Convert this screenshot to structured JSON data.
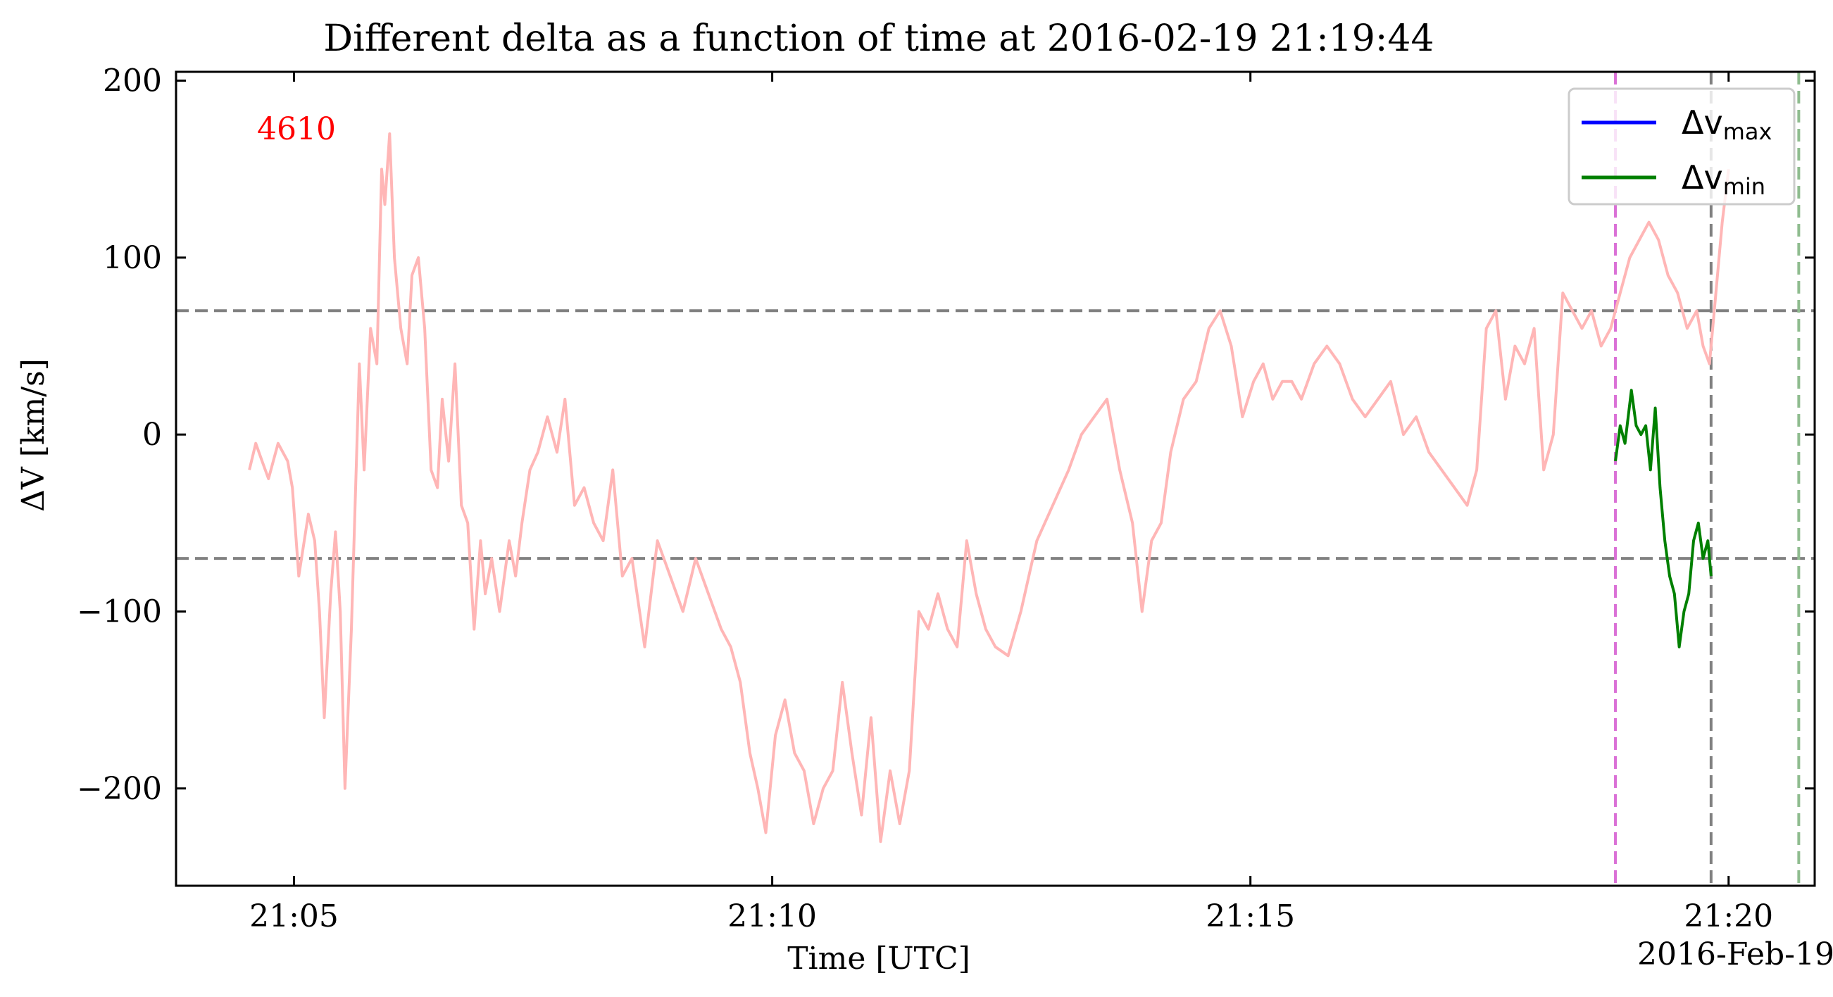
{
  "chart_data": {
    "type": "line",
    "title": "Different delta as a function of time at 2016-02-19 21:19:44",
    "xlabel": "Time [UTC]",
    "xlabel_date": "2016-Feb-19",
    "ylabel": "ΔV [km/s]",
    "xlim": [
      "21:03:46",
      "21:20:54"
    ],
    "ylim": [
      -255,
      205
    ],
    "x_ticks": [
      "21:05",
      "21:10",
      "21:15",
      "21:20"
    ],
    "y_ticks": [
      -200,
      -100,
      0,
      100,
      200
    ],
    "y_tick_labels": [
      "−200",
      "−100",
      "0",
      "100",
      "200"
    ],
    "annotation": {
      "text": "4610",
      "color": "#ff0000",
      "position": "top-left"
    },
    "legend": {
      "placement": "upper-right",
      "entries": [
        {
          "name": "Δv",
          "subscript": "max",
          "color": "#0000ff"
        },
        {
          "name": "Δv",
          "subscript": "min",
          "color": "#008000"
        }
      ]
    },
    "hlines": [
      {
        "y": 70,
        "color": "#808080",
        "style": "dashed"
      },
      {
        "y": -70,
        "color": "#808080",
        "style": "dashed"
      }
    ],
    "vlines": [
      {
        "x": "21:18:49",
        "color": "#da70d6",
        "style": "dashed"
      },
      {
        "x": "21:19:49",
        "color": "#808080",
        "style": "dashed"
      },
      {
        "x": "21:20:44",
        "color": "#8fbc8f",
        "style": "dashed"
      }
    ],
    "series": [
      {
        "color": "#ffb6b6",
        "x": [
          "21:04:32",
          "21:04:36",
          "21:04:40",
          "21:04:44",
          "21:04:50",
          "21:04:56",
          "21:04:59",
          "21:05:03",
          "21:05:09",
          "21:05:13",
          "21:05:16",
          "21:05:19",
          "21:05:23",
          "21:05:26",
          "21:05:29",
          "21:05:32",
          "21:05:36",
          "21:05:41",
          "21:05:44",
          "21:05:48",
          "21:05:52",
          "21:05:55",
          "21:05:57",
          "21:06:00",
          "21:06:03",
          "21:06:07",
          "21:06:11",
          "21:06:14",
          "21:06:18",
          "21:06:22",
          "21:06:26",
          "21:06:30",
          "21:06:33",
          "21:06:37",
          "21:06:41",
          "21:06:45",
          "21:06:49",
          "21:06:53",
          "21:06:57",
          "21:07:00",
          "21:07:04",
          "21:07:09",
          "21:07:15",
          "21:07:19",
          "21:07:23",
          "21:07:28",
          "21:07:33",
          "21:07:39",
          "21:07:45",
          "21:07:50",
          "21:07:56",
          "21:08:02",
          "21:08:08",
          "21:08:14",
          "21:08:20",
          "21:08:26",
          "21:08:32",
          "21:08:40",
          "21:08:48",
          "21:08:56",
          "21:09:04",
          "21:09:12",
          "21:09:20",
          "21:09:28",
          "21:09:34",
          "21:09:40",
          "21:09:46",
          "21:09:51",
          "21:09:56",
          "21:10:02",
          "21:10:08",
          "21:10:14",
          "21:10:20",
          "21:10:26",
          "21:10:32",
          "21:10:38",
          "21:10:44",
          "21:10:50",
          "21:10:56",
          "21:11:02",
          "21:11:08",
          "21:11:14",
          "21:11:20",
          "21:11:26",
          "21:11:32",
          "21:11:38",
          "21:11:44",
          "21:11:50",
          "21:11:56",
          "21:12:02",
          "21:12:08",
          "21:12:14",
          "21:12:20",
          "21:12:28",
          "21:12:36",
          "21:12:46",
          "21:12:56",
          "21:13:06",
          "21:13:14",
          "21:13:22",
          "21:13:30",
          "21:13:38",
          "21:13:46",
          "21:13:52",
          "21:13:58",
          "21:14:04",
          "21:14:10",
          "21:14:18",
          "21:14:26",
          "21:14:34",
          "21:14:41",
          "21:14:48",
          "21:14:55",
          "21:15:02",
          "21:15:08",
          "21:15:14",
          "21:15:20",
          "21:15:26",
          "21:15:32",
          "21:15:40",
          "21:15:48",
          "21:15:56",
          "21:16:04",
          "21:16:12",
          "21:16:20",
          "21:16:28",
          "21:16:36",
          "21:16:44",
          "21:16:52",
          "21:17:00",
          "21:17:08",
          "21:17:16",
          "21:17:22",
          "21:17:28",
          "21:17:34",
          "21:17:40",
          "21:17:46",
          "21:17:52",
          "21:17:58",
          "21:18:04",
          "21:18:10",
          "21:18:16",
          "21:18:22",
          "21:18:28",
          "21:18:34",
          "21:18:40",
          "21:18:46",
          "21:18:52",
          "21:18:58",
          "21:19:04",
          "21:19:10",
          "21:19:16",
          "21:19:22",
          "21:19:28",
          "21:19:34",
          "21:19:40",
          "21:19:44",
          "21:19:48",
          "21:19:52",
          "21:19:56",
          "21:20:00"
        ],
        "values": [
          -20,
          -5,
          -15,
          -25,
          -5,
          -15,
          -30,
          -80,
          -45,
          -60,
          -100,
          -160,
          -90,
          -55,
          -100,
          -200,
          -110,
          40,
          -20,
          60,
          40,
          150,
          130,
          170,
          100,
          60,
          40,
          90,
          100,
          60,
          -20,
          -30,
          20,
          -15,
          40,
          -40,
          -50,
          -110,
          -60,
          -90,
          -70,
          -100,
          -60,
          -80,
          -50,
          -20,
          -10,
          10,
          -10,
          20,
          -40,
          -30,
          -50,
          -60,
          -20,
          -80,
          -70,
          -120,
          -60,
          -80,
          -100,
          -70,
          -90,
          -110,
          -120,
          -140,
          -180,
          -200,
          -225,
          -170,
          -150,
          -180,
          -190,
          -220,
          -200,
          -190,
          -140,
          -180,
          -215,
          -160,
          -230,
          -190,
          -220,
          -190,
          -100,
          -110,
          -90,
          -110,
          -120,
          -60,
          -90,
          -110,
          -120,
          -125,
          -100,
          -60,
          -40,
          -20,
          0,
          10,
          20,
          -20,
          -50,
          -100,
          -60,
          -50,
          -10,
          20,
          30,
          60,
          70,
          50,
          10,
          30,
          40,
          20,
          30,
          30,
          20,
          40,
          50,
          40,
          20,
          10,
          20,
          30,
          0,
          10,
          -10,
          -20,
          -30,
          -40,
          -20,
          60,
          70,
          20,
          50,
          40,
          60,
          -20,
          0,
          80,
          70,
          60,
          70,
          50,
          60,
          80,
          100,
          110,
          120,
          110,
          90,
          80,
          60,
          70,
          50,
          40,
          80,
          120,
          150
        ]
      },
      {
        "color": "#008000",
        "x": [
          "21:18:49",
          "21:18:52",
          "21:18:55",
          "21:18:59",
          "21:19:02",
          "21:19:05",
          "21:19:08",
          "21:19:11",
          "21:19:14",
          "21:19:17",
          "21:19:20",
          "21:19:23",
          "21:19:26",
          "21:19:29",
          "21:19:32",
          "21:19:35",
          "21:19:38",
          "21:19:41",
          "21:19:44",
          "21:19:47",
          "21:19:49"
        ],
        "values": [
          -15,
          5,
          -5,
          25,
          5,
          0,
          5,
          -20,
          15,
          -30,
          -60,
          -80,
          -90,
          -120,
          -100,
          -90,
          -60,
          -50,
          -70,
          -60,
          -80
        ]
      }
    ]
  }
}
